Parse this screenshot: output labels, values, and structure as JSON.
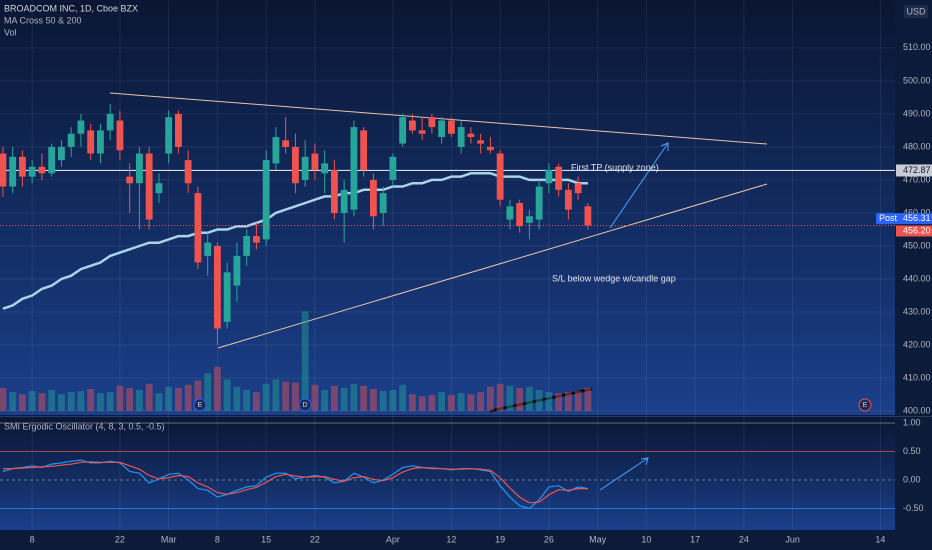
{
  "header": {
    "symbol": "BROADCOM INC, 1D, Cboe BZX",
    "indicator": "MA Cross 50 & 200",
    "volume": "Vol",
    "currency": "USD"
  },
  "chart_data": [
    {
      "type": "candlestick",
      "open": [
        478,
        468,
        477,
        471,
        474,
        472,
        476,
        480,
        484,
        485,
        478,
        485,
        488,
        471,
        469,
        478,
        466,
        478,
        490,
        476,
        466,
        447,
        450,
        427,
        438,
        447,
        453,
        452,
        475,
        482,
        480,
        470,
        478,
        472,
        473,
        460,
        461,
        485,
        470,
        460,
        470,
        481,
        488,
        485,
        489,
        483,
        488,
        480,
        484,
        482,
        480,
        478,
        458,
        463,
        457,
        458,
        469,
        474,
        467,
        469,
        462
      ],
      "high": [
        480,
        480,
        479,
        476,
        478,
        481,
        482,
        486,
        490,
        487,
        487,
        493,
        491,
        475,
        480,
        480,
        472,
        491,
        491,
        479,
        468,
        454,
        451,
        445,
        451,
        455,
        457,
        479,
        486,
        489,
        484,
        482,
        481,
        479,
        476,
        470,
        488,
        486,
        472,
        468,
        478,
        490,
        490,
        489,
        490,
        489,
        489,
        488,
        486,
        484,
        483,
        479,
        464,
        464,
        461,
        470,
        475,
        475,
        469,
        471,
        463
      ],
      "low": [
        465,
        466,
        468,
        469,
        470,
        471,
        474,
        477,
        480,
        476,
        475,
        482,
        476,
        460,
        455,
        455,
        463,
        475,
        478,
        466,
        443,
        441,
        420,
        425,
        433,
        444,
        449,
        450,
        473,
        478,
        466,
        468,
        470,
        466,
        458,
        451,
        459,
        471,
        455,
        456,
        468,
        480,
        484,
        482,
        484,
        481,
        483,
        478,
        481,
        478,
        478,
        462,
        455,
        454,
        452,
        455,
        466,
        465,
        458,
        464,
        455
      ],
      "close": [
        468,
        477,
        471,
        474,
        472,
        480,
        480,
        484,
        488,
        478,
        485,
        490,
        479,
        469,
        478,
        458,
        469,
        489,
        480,
        469,
        445,
        451,
        425,
        442,
        447,
        453,
        451,
        476,
        483,
        480,
        469,
        477,
        473,
        475,
        460,
        467,
        486,
        473,
        459,
        466,
        477,
        489,
        485,
        484,
        486,
        488,
        484,
        486,
        483,
        481,
        479,
        464,
        462,
        456,
        459,
        468,
        473,
        467,
        461,
        466,
        456.2
      ],
      "series": [
        {
          "name": "MA 50",
          "color": "#a9d3e6",
          "values": [
            431,
            432,
            434,
            435,
            437,
            438,
            440,
            441,
            443,
            444,
            445,
            447,
            448,
            449,
            450,
            451,
            451,
            452,
            453,
            453,
            454,
            454,
            455,
            455,
            456,
            456,
            457,
            458,
            460,
            461,
            462,
            463,
            464,
            465,
            465,
            466,
            466,
            467,
            467,
            467,
            468,
            468,
            469,
            469,
            470,
            470,
            471,
            471,
            472,
            472,
            472,
            471,
            471,
            471,
            470,
            470,
            470,
            470,
            470,
            469,
            469
          ]
        },
        {
          "name": "Vol",
          "values": [
            2.2,
            1.8,
            1.6,
            1.9,
            1.7,
            2.0,
            1.6,
            1.8,
            1.9,
            2.1,
            1.7,
            1.8,
            2.4,
            2.2,
            2.0,
            2.6,
            1.7,
            2.3,
            2.2,
            2.5,
            2.9,
            3.6,
            4.2,
            3.0,
            2.3,
            2.0,
            1.8,
            2.6,
            3.0,
            2.8,
            2.7,
            9.5,
            2.5,
            2.0,
            2.4,
            2.2,
            2.6,
            2.4,
            2.1,
            1.9,
            2.0,
            2.5,
            1.6,
            1.4,
            1.5,
            1.8,
            1.5,
            1.7,
            1.6,
            1.8,
            2.3,
            2.6,
            2.4,
            2.2,
            2.3,
            2.0,
            1.8,
            1.7,
            1.8,
            1.9,
            2.2
          ]
        }
      ],
      "up_color": "#26a69a",
      "down_color": "#ef5350",
      "ylim": [
        398.8,
        524.5
      ],
      "yticks": [
        {
          "value": 510,
          "label": "510.00"
        },
        {
          "value": 500,
          "label": "500.00"
        },
        {
          "value": 490,
          "label": "490.00"
        },
        {
          "value": 480,
          "label": "480.00"
        },
        {
          "value": 470,
          "label": "470.00"
        },
        {
          "value": 460,
          "label": "460.00"
        },
        {
          "value": 450,
          "label": "450.00"
        },
        {
          "value": 440,
          "label": "440.00"
        },
        {
          "value": 430,
          "label": "430.00"
        },
        {
          "value": 420,
          "label": "420.00"
        },
        {
          "value": 410,
          "label": "410.00"
        },
        {
          "value": 400,
          "label": "400.00"
        }
      ],
      "xlim": [
        -0.3,
        91.5
      ],
      "xticks": [
        {
          "value": 3,
          "label": "8"
        },
        {
          "value": 12,
          "label": "22"
        },
        {
          "value": 17,
          "label": "Mar"
        },
        {
          "value": 22,
          "label": "8"
        },
        {
          "value": 27,
          "label": "15"
        },
        {
          "value": 32,
          "label": "22"
        },
        {
          "value": 40,
          "label": "Apr"
        },
        {
          "value": 46,
          "label": "12"
        },
        {
          "value": 51,
          "label": "19"
        },
        {
          "value": 56,
          "label": "26"
        },
        {
          "value": 61,
          "label": "May"
        },
        {
          "value": 66,
          "label": "10"
        },
        {
          "value": 71,
          "label": "17"
        },
        {
          "value": 76,
          "label": "24"
        },
        {
          "value": 81,
          "label": "Jun"
        },
        {
          "value": 90,
          "label": "14"
        }
      ],
      "supply_level": {
        "value": 472.87,
        "label": "472.87"
      },
      "post_price": {
        "name": "Post",
        "value": 456.31,
        "label": "456.31"
      },
      "last_price": {
        "value": 456.2,
        "label": "456.20"
      },
      "annotations": [
        "First TP (supply zone)",
        "S/L below wedge w/candle gap"
      ],
      "events": [
        "E",
        "D",
        "E"
      ]
    },
    {
      "type": "line",
      "title": "SMI Ergodic Oscillator (4, 8, 3, 0.5, -0.5)",
      "series": [
        {
          "name": "SMI",
          "color": "#2196f3",
          "values": [
            0.15,
            0.2,
            0.22,
            0.25,
            0.22,
            0.28,
            0.3,
            0.33,
            0.35,
            0.3,
            0.3,
            0.33,
            0.3,
            0.15,
            0.12,
            -0.05,
            0.02,
            0.1,
            0.12,
            0.0,
            -0.15,
            -0.18,
            -0.3,
            -0.25,
            -0.18,
            -0.12,
            -0.1,
            0.05,
            0.12,
            0.12,
            0.02,
            0.05,
            0.08,
            0.05,
            -0.05,
            -0.02,
            0.12,
            0.05,
            -0.05,
            0.0,
            0.1,
            0.22,
            0.25,
            0.22,
            0.2,
            0.2,
            0.18,
            0.2,
            0.2,
            0.18,
            0.15,
            -0.1,
            -0.3,
            -0.45,
            -0.5,
            -0.35,
            -0.12,
            -0.1,
            -0.2,
            -0.12,
            -0.15
          ]
        },
        {
          "name": "Signal",
          "color": "#ef5350",
          "values": [
            0.2,
            0.2,
            0.21,
            0.22,
            0.23,
            0.24,
            0.26,
            0.28,
            0.31,
            0.32,
            0.31,
            0.31,
            0.31,
            0.25,
            0.19,
            0.08,
            0.02,
            0.04,
            0.08,
            0.06,
            -0.05,
            -0.12,
            -0.22,
            -0.25,
            -0.22,
            -0.17,
            -0.13,
            -0.04,
            0.06,
            0.1,
            0.07,
            0.05,
            0.06,
            0.06,
            0.01,
            -0.02,
            0.04,
            0.06,
            0.01,
            -0.01,
            0.04,
            0.14,
            0.2,
            0.22,
            0.21,
            0.2,
            0.19,
            0.19,
            0.2,
            0.19,
            0.17,
            0.04,
            -0.14,
            -0.3,
            -0.4,
            -0.39,
            -0.26,
            -0.17,
            -0.18,
            -0.15,
            -0.15
          ]
        }
      ],
      "ylim": [
        -0.877,
        1.088
      ],
      "yticks": [
        {
          "value": 1,
          "label": "1.00"
        },
        {
          "value": 0.5,
          "label": "0.50"
        },
        {
          "value": 0,
          "label": "0.00"
        },
        {
          "value": -0.5,
          "label": "-0.50"
        }
      ]
    }
  ]
}
